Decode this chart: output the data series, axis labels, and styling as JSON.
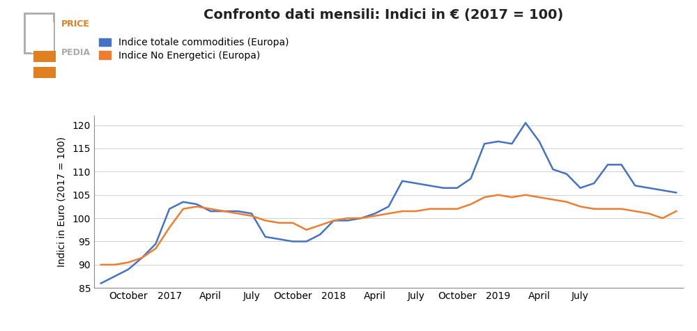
{
  "title": "Confronto dati mensili: Indici in € (2017 = 100)",
  "ylabel": "Indici in Euro (2017 = 100)",
  "series1_label": "Indice totale commodities (Europa)",
  "series2_label": "Indice No Energetici (Europa)",
  "color1": "#4472c4",
  "color2": "#ed7d31",
  "ylim": [
    85,
    122
  ],
  "yticks": [
    85,
    90,
    95,
    100,
    105,
    110,
    115,
    120
  ],
  "x_tick_labels": [
    "October",
    "2017",
    "April",
    "July",
    "October",
    "2018",
    "April",
    "July",
    "October",
    "2019",
    "April",
    "July"
  ],
  "tick_positions": [
    2,
    5,
    8,
    11,
    14,
    17,
    20,
    23,
    26,
    29,
    32,
    35
  ],
  "series1": [
    86.0,
    87.5,
    89.0,
    91.5,
    94.5,
    102.0,
    103.5,
    103.0,
    101.5,
    101.5,
    101.5,
    101.0,
    96.0,
    95.5,
    95.0,
    95.0,
    96.5,
    99.5,
    99.5,
    100.0,
    101.0,
    102.5,
    108.0,
    107.5,
    107.0,
    106.5,
    106.5,
    108.5,
    116.0,
    116.5,
    116.0,
    120.5,
    116.5,
    110.5,
    109.5,
    106.5,
    107.5,
    111.5,
    111.5,
    107.0,
    106.5,
    106.0,
    105.5
  ],
  "series2": [
    90.0,
    90.0,
    90.5,
    91.5,
    93.5,
    98.0,
    102.0,
    102.5,
    102.0,
    101.5,
    101.0,
    100.5,
    99.5,
    99.0,
    99.0,
    97.5,
    98.5,
    99.5,
    100.0,
    100.0,
    100.5,
    101.0,
    101.5,
    101.5,
    102.0,
    102.0,
    102.0,
    103.0,
    104.5,
    105.0,
    104.5,
    105.0,
    104.5,
    104.0,
    103.5,
    102.5,
    102.0,
    102.0,
    102.0,
    101.5,
    101.0,
    100.0,
    101.5
  ],
  "background_color": "#ffffff",
  "plot_bg_color": "#ffffff",
  "title_fontsize": 14,
  "tick_fontsize": 10,
  "ylabel_fontsize": 10,
  "legend_fontsize": 10,
  "linewidth": 1.8
}
